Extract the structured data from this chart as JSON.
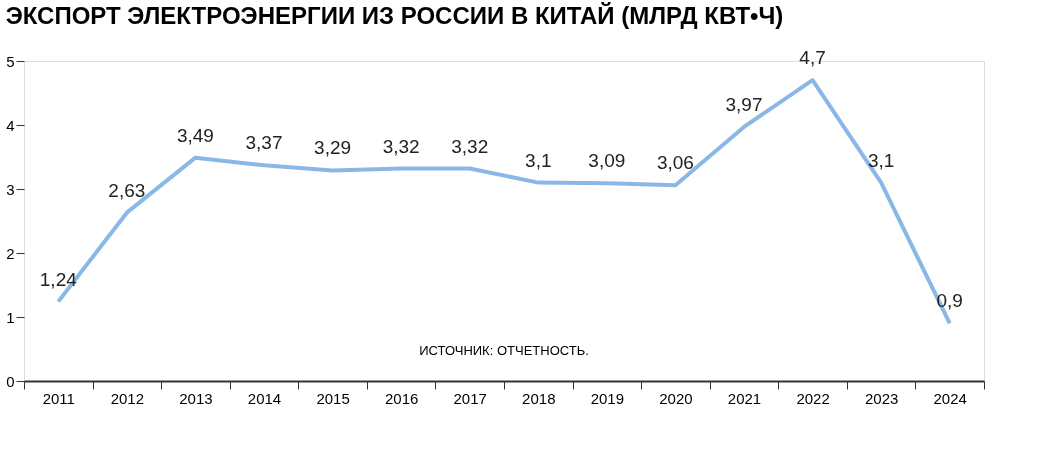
{
  "chart_data": {
    "type": "line",
    "title": "ЭКСПОРТ ЭЛЕКТРОЭНЕРГИИ ИЗ РОССИИ В КИТАЙ (МЛРД КВТ•Ч)",
    "categories": [
      "2011",
      "2012",
      "2013",
      "2014",
      "2015",
      "2016",
      "2017",
      "2018",
      "2019",
      "2020",
      "2021",
      "2022",
      "2023",
      "2024"
    ],
    "series": [
      {
        "color": "#8ab8e6",
        "values": [
          1.24,
          2.63,
          3.49,
          3.37,
          3.29,
          3.32,
          3.32,
          3.1,
          3.09,
          3.06,
          3.97,
          4.7,
          3.1,
          0.9
        ],
        "value_labels": [
          "1,24",
          "2,63",
          "3,49",
          "3,37",
          "3,29",
          "3,32",
          "3,32",
          "3,1",
          "3,09",
          "3,06",
          "3,97",
          "4,7",
          "3,1",
          "0,9"
        ]
      }
    ],
    "ylim": [
      0,
      5
    ],
    "yticks": [
      0,
      1,
      2,
      3,
      4,
      5
    ],
    "grid": false,
    "marker": "none",
    "line_style": "solid",
    "annotations": [
      "ИСТОЧНИК: ОТЧЕТНОСТЬ."
    ]
  }
}
